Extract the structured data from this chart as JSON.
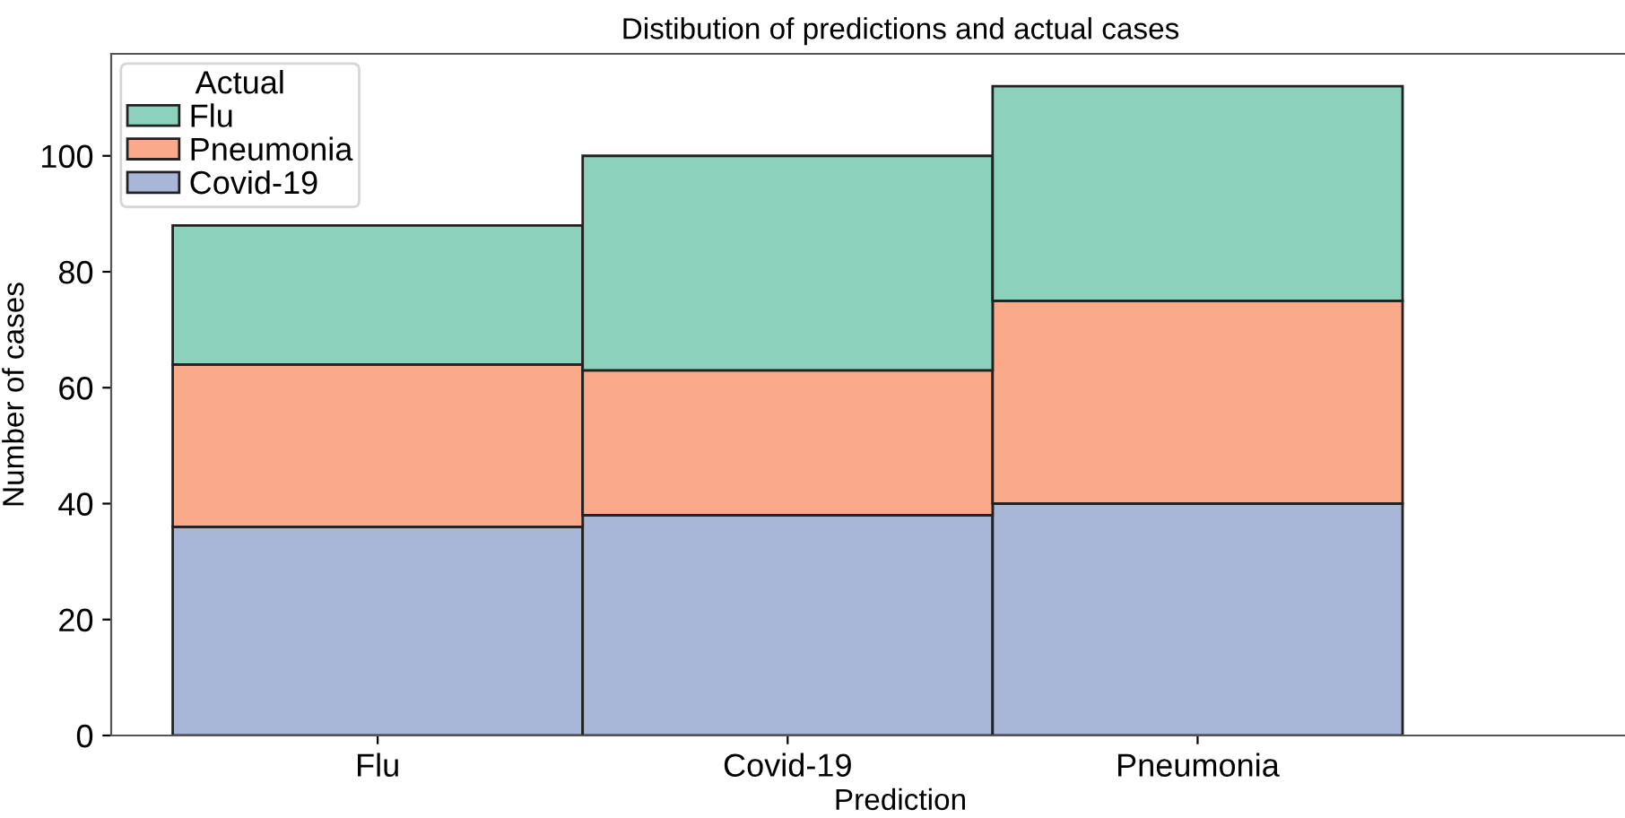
{
  "chart_data": {
    "type": "bar",
    "stacked": true,
    "title": "Distibution of predictions and actual cases",
    "xlabel": "Prediction",
    "ylabel": "Number of cases",
    "legend_title": "Actual",
    "legend": "top left",
    "categories": [
      "Flu",
      "Covid-19",
      "Pneumonia"
    ],
    "series": [
      {
        "name": "Covid-19",
        "color": "#a8b6d8",
        "values": [
          36,
          38,
          40
        ]
      },
      {
        "name": "Pneumonia",
        "color": "#fba98b",
        "values": [
          28,
          25,
          35
        ]
      },
      {
        "name": "Flu",
        "color": "#8cd1bb",
        "values": [
          24,
          37,
          37
        ]
      }
    ],
    "ylim": [
      0,
      117.6
    ],
    "yticks": [
      0,
      20,
      40,
      60,
      80,
      100
    ],
    "grid": false
  }
}
